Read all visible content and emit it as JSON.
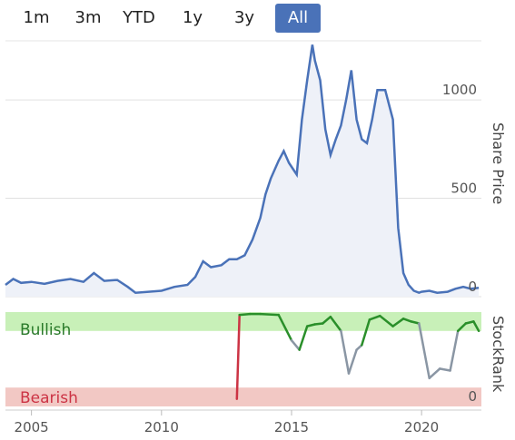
{
  "range_tabs": [
    {
      "label": "1m",
      "active": false
    },
    {
      "label": "3m",
      "active": false
    },
    {
      "label": "YTD",
      "active": false
    },
    {
      "label": "1y",
      "active": false
    },
    {
      "label": "3y",
      "active": false
    },
    {
      "label": "All",
      "active": true
    }
  ],
  "colors": {
    "accent": "#4a72b8",
    "price_line": "#4a72b8",
    "price_fill": "#eef1f8",
    "bullish_band": "#c8f0b8",
    "bearish_band": "#f2c8c4",
    "rank_green": "#2a8f2a",
    "rank_gray": "#8a96a4",
    "rank_red": "#cc3344"
  },
  "chart_data": [
    {
      "type": "line",
      "ylabel": "Share Price",
      "ylim": [
        0,
        1300
      ],
      "yticks": [
        "0",
        "500",
        "1000"
      ],
      "xlim": [
        2004.0,
        2022.3
      ],
      "x": [
        2004.0,
        2004.3,
        2004.6,
        2005.0,
        2005.5,
        2006.0,
        2006.5,
        2007.0,
        2007.4,
        2007.8,
        2008.3,
        2008.7,
        2009.0,
        2009.5,
        2010.0,
        2010.5,
        2011.0,
        2011.3,
        2011.6,
        2011.9,
        2012.3,
        2012.6,
        2012.9,
        2013.2,
        2013.5,
        2013.8,
        2014.0,
        2014.2,
        2014.5,
        2014.7,
        2014.9,
        2015.2,
        2015.4,
        2015.6,
        2015.8,
        2015.9,
        2016.1,
        2016.3,
        2016.5,
        2016.7,
        2016.9,
        2017.1,
        2017.3,
        2017.5,
        2017.7,
        2017.9,
        2018.1,
        2018.3,
        2018.6,
        2018.9,
        2019.1,
        2019.3,
        2019.5,
        2019.7,
        2019.9,
        2020.0,
        2020.3,
        2020.6,
        2021.0,
        2021.3,
        2021.6,
        2021.9,
        2022.2
      ],
      "series": [
        {
          "values": [
            60,
            90,
            70,
            75,
            65,
            80,
            90,
            75,
            120,
            80,
            85,
            50,
            20,
            25,
            30,
            50,
            60,
            100,
            180,
            150,
            160,
            190,
            190,
            210,
            290,
            400,
            520,
            600,
            690,
            740,
            680,
            620,
            900,
            1100,
            1280,
            1200,
            1100,
            850,
            720,
            800,
            870,
            1000,
            1150,
            900,
            800,
            780,
            900,
            1050,
            1050,
            900,
            350,
            120,
            60,
            30,
            20,
            25,
            30,
            20,
            25,
            40,
            50,
            40,
            45
          ]
        }
      ]
    },
    {
      "type": "line",
      "ylabel": "StockRank",
      "bands": [
        {
          "label": "Bullish",
          "range": [
            80,
            100
          ]
        },
        {
          "label": "Bearish",
          "range": [
            0,
            20
          ]
        }
      ],
      "yticks": [
        "0"
      ],
      "ylim": [
        0,
        100
      ],
      "xlim": [
        2004.0,
        2022.3
      ],
      "xticks": [
        "2005",
        "2010",
        "2015",
        "2020"
      ],
      "x": [
        2012.9,
        2013.0,
        2013.4,
        2013.8,
        2014.5,
        2015.0,
        2015.3,
        2015.6,
        2015.9,
        2016.2,
        2016.5,
        2016.9,
        2017.2,
        2017.5,
        2017.7,
        2018.0,
        2018.4,
        2018.9,
        2019.3,
        2019.6,
        2019.9,
        2020.3,
        2020.7,
        2021.1,
        2021.4,
        2021.7,
        2022.0,
        2022.2
      ],
      "series": [
        {
          "values": [
            8,
            97,
            98,
            98,
            97,
            70,
            60,
            85,
            87,
            88,
            95,
            80,
            35,
            60,
            65,
            92,
            96,
            85,
            93,
            90,
            88,
            30,
            40,
            38,
            80,
            88,
            90,
            80
          ]
        }
      ]
    }
  ]
}
